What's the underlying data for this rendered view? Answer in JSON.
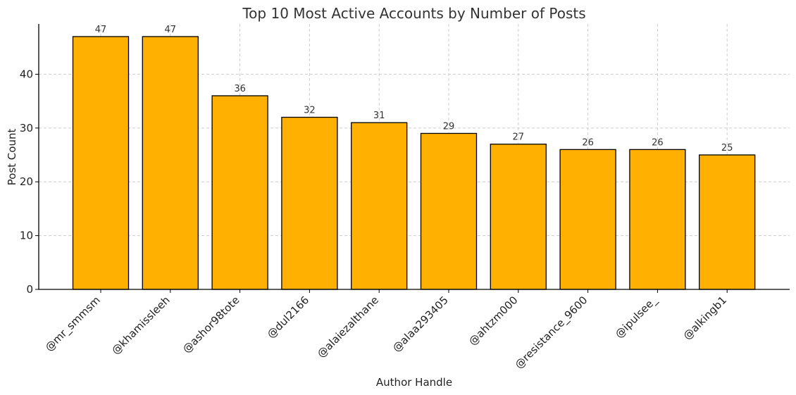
{
  "chart_data": {
    "type": "bar",
    "title": "Top 10 Most Active Accounts by Number of Posts",
    "xlabel": "Author Handle",
    "ylabel": "Post Count",
    "categories": [
      "@mr_smmsm",
      "@khamissleeh",
      "@ashor98tote",
      "@dul2166",
      "@alaiezalthane",
      "@alaa293405",
      "@ahtzm000",
      "@resistance_9600",
      "@ipulsee_",
      "@alkingb1"
    ],
    "values": [
      47,
      47,
      36,
      32,
      31,
      29,
      27,
      26,
      26,
      25
    ],
    "ylim": [
      0,
      49.35
    ],
    "yticks": [
      0,
      10,
      20,
      30,
      40
    ],
    "grid": true,
    "bar_color": "#FFB000",
    "bar_edge_color": "#000000"
  }
}
